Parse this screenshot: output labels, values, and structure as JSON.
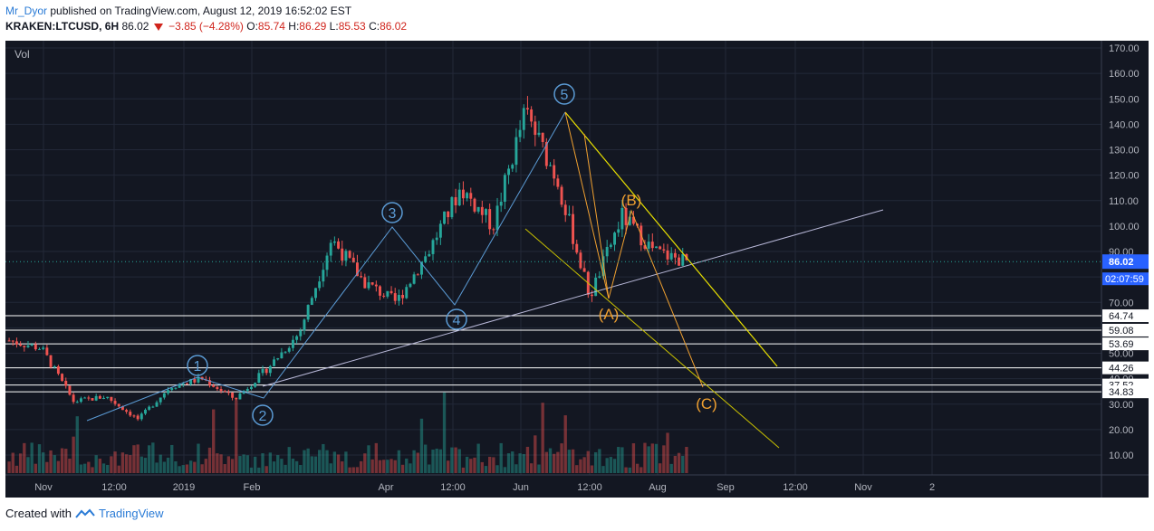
{
  "header": {
    "author": "Mr_Dyor",
    "published": "published on TradingView.com, August 12, 2019 16:52:02 EST",
    "symbol": "KRAKEN:LTCUSD, 6H",
    "last": "86.02",
    "change": "−3.85 (−4.28%)",
    "o_label": "O:",
    "o_val": "85.74",
    "h_label": "H:",
    "h_val": "86.29",
    "l_label": "L:",
    "l_val": "85.53",
    "c_label": "C:",
    "c_val": "86.02"
  },
  "footer": {
    "created_with": "Created with",
    "brand": "TradingView"
  },
  "colors": {
    "bg": "#131722",
    "grid": "#232838",
    "up": "#26a69a",
    "down": "#ef5350",
    "wave": "#5b9bd5",
    "orange": "#f0a030",
    "yellow": "#e8e000",
    "support": "#b8b8d8",
    "price_tag": "#2962ff",
    "hline": "#ffffff"
  },
  "chart_data": {
    "type": "candlestick",
    "vol_label": "Vol",
    "price_ticks": [
      "10.00",
      "20.00",
      "30.00",
      "40.00",
      "50.00",
      "60.00",
      "70.00",
      "80.00",
      "90.00",
      "100.00",
      "110.00",
      "120.00",
      "130.00",
      "140.00",
      "150.00",
      "160.00",
      "170.00"
    ],
    "x_ticks": [
      "Nov",
      "12:00",
      "2019",
      "Feb",
      "Apr",
      "12:00",
      "Jun",
      "12:00",
      "Aug",
      "Sep",
      "12:00",
      "Nov",
      "2"
    ],
    "last_price": "86.02",
    "countdown": "02:07:59",
    "levels": [
      "64.74",
      "59.08",
      "53.69",
      "44.26",
      "37.52",
      "34.83"
    ],
    "ohlc_points": [
      {
        "t": "Oct 2018",
        "close": 55
      },
      {
        "t": "Nov",
        "close": 52
      },
      {
        "t": "late Nov",
        "close": 31
      },
      {
        "t": "Dec",
        "close": 33
      },
      {
        "t": "mid Dec",
        "close": 24
      },
      {
        "t": "Jan",
        "close": 37
      },
      {
        "t": "mid Jan",
        "close": 40
      },
      {
        "t": "late Jan",
        "close": 32
      },
      {
        "t": "Feb",
        "close": 44
      },
      {
        "t": "Mar",
        "close": 58
      },
      {
        "t": "Apr",
        "close": 95
      },
      {
        "t": "mid Apr",
        "close": 78
      },
      {
        "t": "May",
        "close": 70
      },
      {
        "t": "mid May",
        "close": 90
      },
      {
        "t": "late May",
        "close": 115
      },
      {
        "t": "early Jun",
        "close": 100
      },
      {
        "t": "mid Jun",
        "close": 145
      },
      {
        "t": "late Jun",
        "close": 118
      },
      {
        "t": "early Jul",
        "close": 72
      },
      {
        "t": "Jul",
        "close": 104
      },
      {
        "t": "late Jul",
        "close": 90
      },
      {
        "t": "Aug",
        "close": 86
      }
    ],
    "elliott_labels": [
      "1",
      "2",
      "3",
      "4",
      "5",
      "(A)",
      "(B)",
      "(C)"
    ]
  }
}
